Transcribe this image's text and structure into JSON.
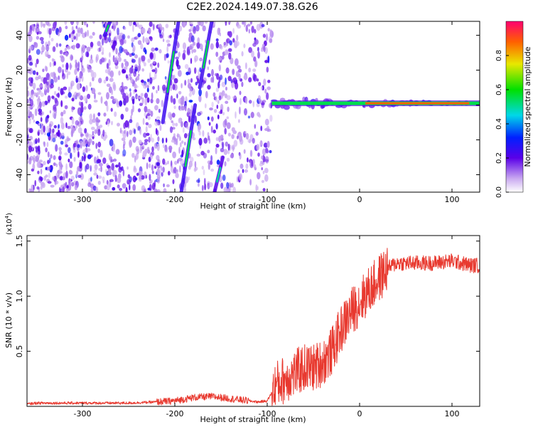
{
  "title": "C2E2.2024.149.07.38.G26",
  "colors": {
    "snr_line": "#e8392f",
    "axis": "#000000"
  },
  "chart_data": [
    {
      "type": "heatmap",
      "name": "spectrogram",
      "xlabel": "Height of straight line (km)",
      "ylabel": "Frequency (Hz)",
      "xlim": [
        -360,
        130
      ],
      "ylim": [
        -50,
        48
      ],
      "xticks": [
        -300,
        -200,
        -100,
        0,
        100
      ],
      "yticks": [
        -40,
        -20,
        0,
        20,
        40
      ],
      "grid": false,
      "colorbar": {
        "label": "Normalized spectral amplitude",
        "range": [
          0,
          1
        ],
        "ticks": [
          "0.0",
          "0.2",
          "0.4",
          "0.6",
          "0.8"
        ],
        "colormap": "rainbow"
      },
      "features": [
        {
          "kind": "diffuse_noise",
          "x_range": [
            -360,
            -95
          ],
          "f_range": [
            -50,
            48
          ],
          "amplitude": 0.05
        },
        {
          "kind": "carrier_line",
          "x_range": [
            -95,
            130
          ],
          "f_center": 1,
          "amplitude": 0.8
        },
        {
          "kind": "streak",
          "x": [
            -276,
            -270
          ],
          "f": [
            40,
            48
          ],
          "amplitude": 0.4
        },
        {
          "kind": "streak",
          "x": [
            -213,
            -196
          ],
          "f": [
            -10,
            48
          ],
          "amplitude": 0.4
        },
        {
          "kind": "streak",
          "x": [
            -193,
            -178
          ],
          "f": [
            -50,
            0
          ],
          "amplitude": 0.4
        },
        {
          "kind": "streak",
          "x": [
            -173,
            -160
          ],
          "f": [
            10,
            48
          ],
          "amplitude": 0.4
        },
        {
          "kind": "streak",
          "x": [
            -157,
            -148
          ],
          "f": [
            -50,
            -30
          ],
          "amplitude": 0.35
        }
      ]
    },
    {
      "type": "line",
      "name": "snr",
      "xlabel": "Height of straight line (km)",
      "ylabel": "SNR (10 * v/v)",
      "scale_label": "(x10",
      "scale_exp": "4",
      "scale_close": ")",
      "xlim": [
        -360,
        130
      ],
      "ylim": [
        0,
        1.55
      ],
      "xticks": [
        -300,
        -200,
        -100,
        0,
        100
      ],
      "yticks": [
        "0.5",
        "1.0",
        "1.5"
      ],
      "grid": false,
      "series": [
        {
          "x": [
            -360,
            -350,
            -300,
            -250,
            -220,
            -200,
            -180,
            -160,
            -140,
            -120,
            -110,
            -100,
            -90,
            -80,
            -70,
            -60,
            -50,
            -40,
            -30,
            -20,
            -10,
            0,
            10,
            20,
            30,
            40,
            60,
            80,
            100,
            120,
            130
          ],
          "y": [
            0.02,
            0.03,
            0.03,
            0.03,
            0.04,
            0.05,
            0.08,
            0.09,
            0.07,
            0.05,
            0.04,
            0.05,
            0.2,
            0.25,
            0.3,
            0.35,
            0.35,
            0.4,
            0.5,
            0.7,
            0.85,
            0.95,
            1.05,
            1.15,
            1.25,
            1.3,
            1.3,
            1.3,
            1.32,
            1.28,
            1.28
          ]
        }
      ]
    }
  ]
}
